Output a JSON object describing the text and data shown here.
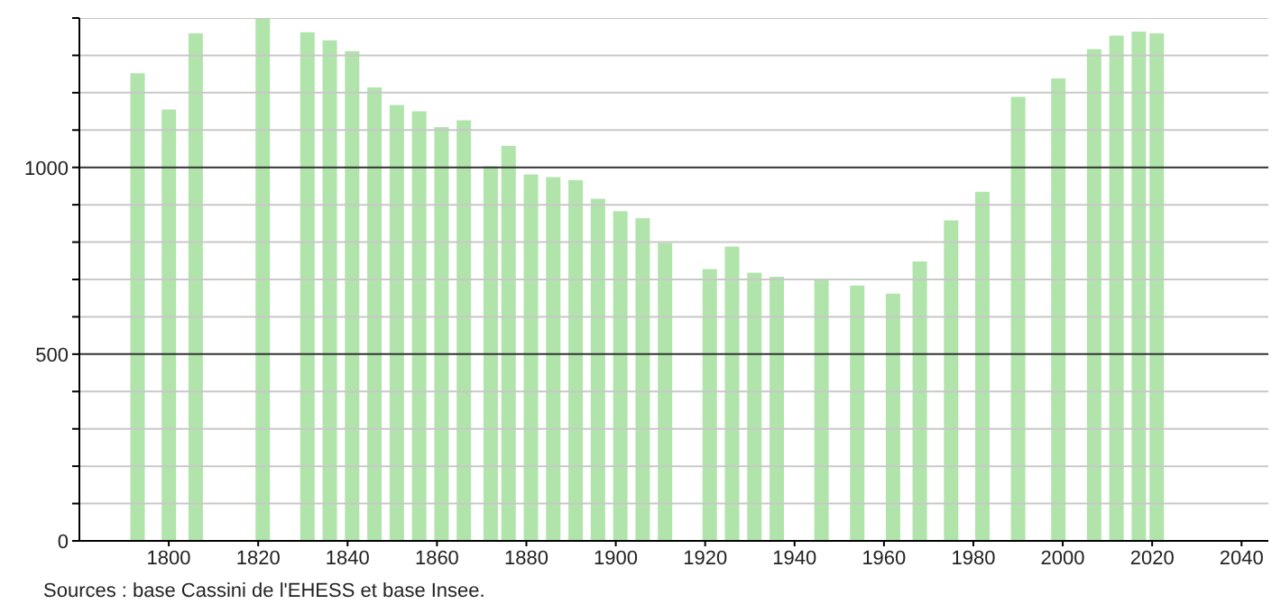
{
  "chart_data": {
    "type": "bar",
    "x": [
      1793,
      1800,
      1806,
      1821,
      1831,
      1836,
      1841,
      1846,
      1851,
      1856,
      1861,
      1866,
      1872,
      1876,
      1881,
      1886,
      1891,
      1896,
      1901,
      1906,
      1911,
      1921,
      1926,
      1931,
      1936,
      1946,
      1954,
      1962,
      1968,
      1975,
      1982,
      1990,
      1999,
      2007,
      2012,
      2017,
      2021
    ],
    "values": [
      1252,
      1155,
      1359,
      1400,
      1362,
      1340,
      1311,
      1214,
      1167,
      1150,
      1108,
      1126,
      1003,
      1058,
      981,
      974,
      966,
      916,
      883,
      864,
      798,
      728,
      788,
      718,
      707,
      700,
      684,
      662,
      748,
      858,
      935,
      1189,
      1238,
      1317,
      1353,
      1364,
      1359
    ],
    "color": "#b0e4ab",
    "xlim": [
      1780,
      2046
    ],
    "xticks": [
      1800,
      1820,
      1840,
      1860,
      1880,
      1900,
      1920,
      1940,
      1960,
      1980,
      2000,
      2020,
      2040
    ],
    "ylim": [
      0,
      1400
    ],
    "yticks": [
      0,
      {
        "value": 100,
        "label": null
      },
      {
        "value": 200,
        "label": null
      },
      {
        "value": 300,
        "label": null
      },
      {
        "value": 400,
        "label": null
      },
      500,
      {
        "value": 600,
        "label": null
      },
      {
        "value": 700,
        "label": null
      },
      {
        "value": 800,
        "label": null
      },
      {
        "value": 900,
        "label": null
      },
      1000,
      {
        "value": 1100,
        "label": null
      },
      {
        "value": 1200,
        "label": null
      },
      {
        "value": 1300,
        "label": null
      },
      {
        "value": 1400,
        "label": null
      }
    ],
    "grid": "y",
    "annotations": [
      "Sources : base Cassini de l'EHESS et base Insee."
    ]
  }
}
